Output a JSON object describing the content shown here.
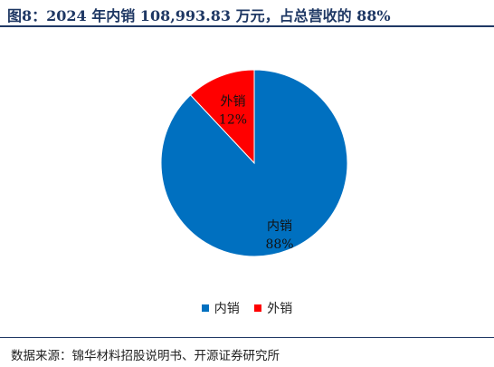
{
  "header": {
    "title": "图8：2024 年内销 108,993.83 万元，占总营收的 88%"
  },
  "chart_data": {
    "type": "pie",
    "title": "",
    "slices": [
      {
        "label": "外销",
        "value": 12,
        "value_label": "12%",
        "color": "#ff0000"
      },
      {
        "label": "内销",
        "value": 88,
        "value_label": "88%",
        "color": "#0070c0"
      }
    ],
    "start": "top",
    "direction": "counter-clockwise",
    "legend": {
      "placement": "bottom",
      "items": [
        {
          "label": "内销",
          "color": "#0070c0"
        },
        {
          "label": "外销",
          "color": "#ff0000"
        }
      ]
    }
  },
  "footer": {
    "source": "数据来源：锦华材料招股说明书、开源证券研究所"
  }
}
